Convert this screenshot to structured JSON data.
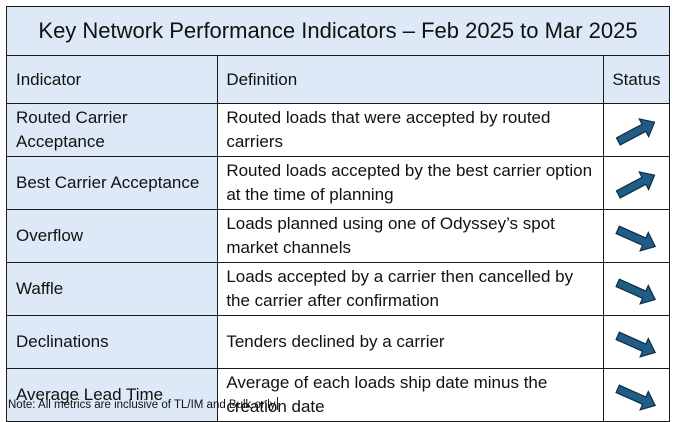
{
  "title": "Key Network Performance Indicators – Feb 2025 to Mar 2025",
  "headers": {
    "indicator": "Indicator",
    "definition": "Definition",
    "status": "Status"
  },
  "rows": [
    {
      "indicator": "Routed Carrier Acceptance",
      "definition": "Routed loads that were accepted by routed carriers",
      "status": "up",
      "status_icon": "arrow-up-right-icon"
    },
    {
      "indicator": "Best Carrier Acceptance",
      "definition": "Routed loads accepted by the best carrier option at the time of planning",
      "status": "up",
      "status_icon": "arrow-up-right-icon"
    },
    {
      "indicator": "Overflow",
      "definition": "Loads planned using one of Odyssey’s spot market channels",
      "status": "down",
      "status_icon": "arrow-down-right-icon"
    },
    {
      "indicator": "Waffle",
      "definition": "Loads accepted by a carrier then cancelled by the carrier after confirmation",
      "status": "down",
      "status_icon": "arrow-down-right-icon"
    },
    {
      "indicator": "Declinations",
      "definition": "Tenders declined by a carrier",
      "status": "down",
      "status_icon": "arrow-down-right-icon"
    },
    {
      "indicator": "Average Lead Time",
      "definition": "Average of each loads ship date minus the creation date",
      "status": "down",
      "status_icon": "arrow-down-right-icon"
    }
  ],
  "note": "Note: All metrics are inclusive of TL/IM and Bulk only",
  "colors": {
    "header_fill": "#dde9f7",
    "arrow_fill": "#1f5c86",
    "arrow_stroke": "#0d2c42",
    "border": "#1a1a1a"
  }
}
